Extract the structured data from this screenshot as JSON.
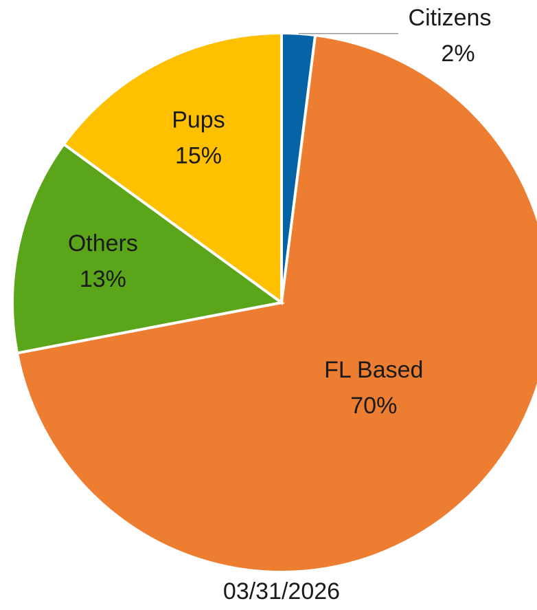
{
  "chart_data": {
    "type": "pie",
    "title": "03/31/2026",
    "categories": [
      "Citizens",
      "FL Based",
      "Others",
      "Pups"
    ],
    "values": [
      2,
      70,
      13,
      15
    ],
    "value_labels": [
      "2%",
      "70%",
      "13%",
      "15%"
    ],
    "colors": [
      "#0563a6",
      "#ed7d31",
      "#5aa519",
      "#ffc000"
    ]
  }
}
